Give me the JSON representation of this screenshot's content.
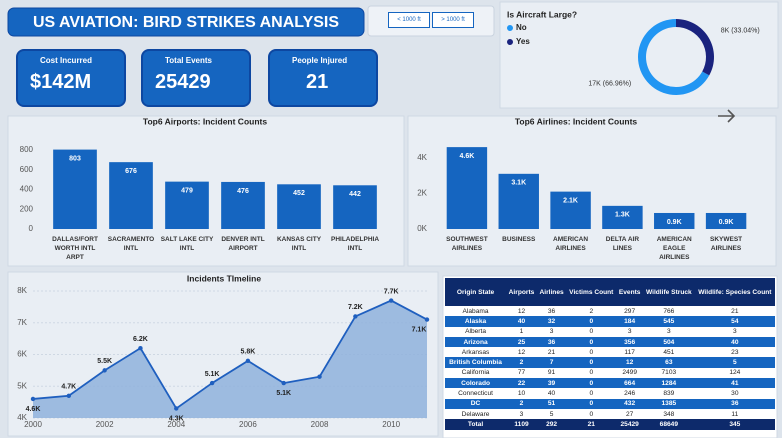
{
  "header": {
    "title": "US AVIATION: BIRD STRIKES ANALYSIS"
  },
  "buttons": [
    "< 1000 ft",
    "> 1000 ft"
  ],
  "kpis": [
    {
      "label": "Cost Incurred",
      "value": "$142M"
    },
    {
      "label": "Total Events",
      "value": "25429"
    },
    {
      "label": "People Injured",
      "value": "21"
    }
  ],
  "chart_data": [
    {
      "type": "pie",
      "title": "Is Aircraft Large?",
      "categories": [
        "No",
        "Yes"
      ],
      "values": [
        66.96,
        33.04
      ],
      "value_labels": [
        "17K (66.96%)",
        "8K (33.04%)"
      ],
      "colors": [
        "#2196f3",
        "#1a237e"
      ]
    },
    {
      "type": "bar",
      "title": "Top6 Airports: Incident Counts",
      "categories": [
        "DALLAS/FORT WORTH INTL ARPT",
        "SACRAMENTO INTL",
        "SALT LAKE CITY INTL",
        "DENVER INTL AIRPORT",
        "KANSAS CITY INTL",
        "PHILADELPHIA INTL"
      ],
      "values": [
        803,
        676,
        479,
        476,
        452,
        442
      ],
      "color": "#1565c0",
      "ylim": [
        0,
        900
      ],
      "yticks": [
        0,
        200,
        400,
        600,
        800
      ]
    },
    {
      "type": "bar",
      "title": "Top6 Airlines: Incident Counts",
      "categories": [
        "SOUTHWEST AIRLINES",
        "BUSINESS",
        "AMERICAN AIRLINES",
        "DELTA AIR LINES",
        "AMERICAN EAGLE AIRLINES",
        "SKYWEST AIRLINES"
      ],
      "values": [
        4600,
        3100,
        2100,
        1300,
        900,
        900
      ],
      "value_labels": [
        "4.6K",
        "3.1K",
        "2.1K",
        "1.3K",
        "0.9K",
        "0.9K"
      ],
      "color": "#1565c0",
      "ylim": [
        0,
        5000
      ],
      "yticks": [
        {
          "value": 0,
          "label": "0K"
        },
        {
          "value": 2000,
          "label": "2K"
        },
        {
          "value": 4000,
          "label": "4K"
        }
      ]
    },
    {
      "type": "line",
      "title": "Incidents TImeline",
      "x": [
        2000,
        2001,
        2002,
        2003,
        2004,
        2005,
        2006,
        2007,
        2008,
        2009,
        2010,
        2011
      ],
      "values": [
        4600,
        4700,
        5500,
        6200,
        4300,
        5100,
        5800,
        5100,
        5300,
        7200,
        7700,
        7100
      ],
      "value_labels": [
        "4.6K",
        "4.7K",
        "5.5K",
        "6.2K",
        "4.3K",
        "5.1K",
        "5.8K",
        "5.1K",
        null,
        "7.2K",
        "7.7K",
        "7.1K"
      ],
      "color": "#1f5fbf",
      "xlim": [
        2000,
        2011
      ],
      "xticks": [
        2000,
        2002,
        2004,
        2006,
        2008,
        2010
      ],
      "ylim": [
        4000,
        8000
      ],
      "yticks": [
        {
          "value": 4000,
          "label": "4K"
        },
        {
          "value": 5000,
          "label": "5K"
        },
        {
          "value": 6000,
          "label": "6K"
        },
        {
          "value": 7000,
          "label": "7K"
        },
        {
          "value": 8000,
          "label": "8K"
        }
      ],
      "grid": true
    }
  ],
  "table": {
    "columns": [
      "Origin State",
      "Airports",
      "Airlines",
      "Victims Count",
      "Events",
      "Wildlife Struck",
      "Wildlife: Species Count"
    ],
    "rows": [
      [
        "Alabama",
        12,
        36,
        2,
        297,
        766,
        21
      ],
      [
        "Alaska",
        40,
        32,
        0,
        184,
        545,
        54
      ],
      [
        "Alberta",
        1,
        3,
        0,
        3,
        3,
        3
      ],
      [
        "Arizona",
        25,
        36,
        0,
        356,
        504,
        40
      ],
      [
        "Arkansas",
        12,
        21,
        0,
        117,
        451,
        23
      ],
      [
        "British Columbia",
        2,
        7,
        0,
        12,
        63,
        5
      ],
      [
        "California",
        77,
        91,
        0,
        2499,
        7103,
        124
      ],
      [
        "Colorado",
        22,
        39,
        0,
        664,
        1284,
        41
      ],
      [
        "Connecticut",
        10,
        40,
        0,
        246,
        839,
        30
      ],
      [
        "DC",
        2,
        51,
        0,
        432,
        1385,
        36
      ],
      [
        "Delaware",
        3,
        5,
        0,
        27,
        348,
        11
      ]
    ],
    "total": [
      "Total",
      1109,
      292,
      21,
      25429,
      68649,
      345
    ]
  }
}
